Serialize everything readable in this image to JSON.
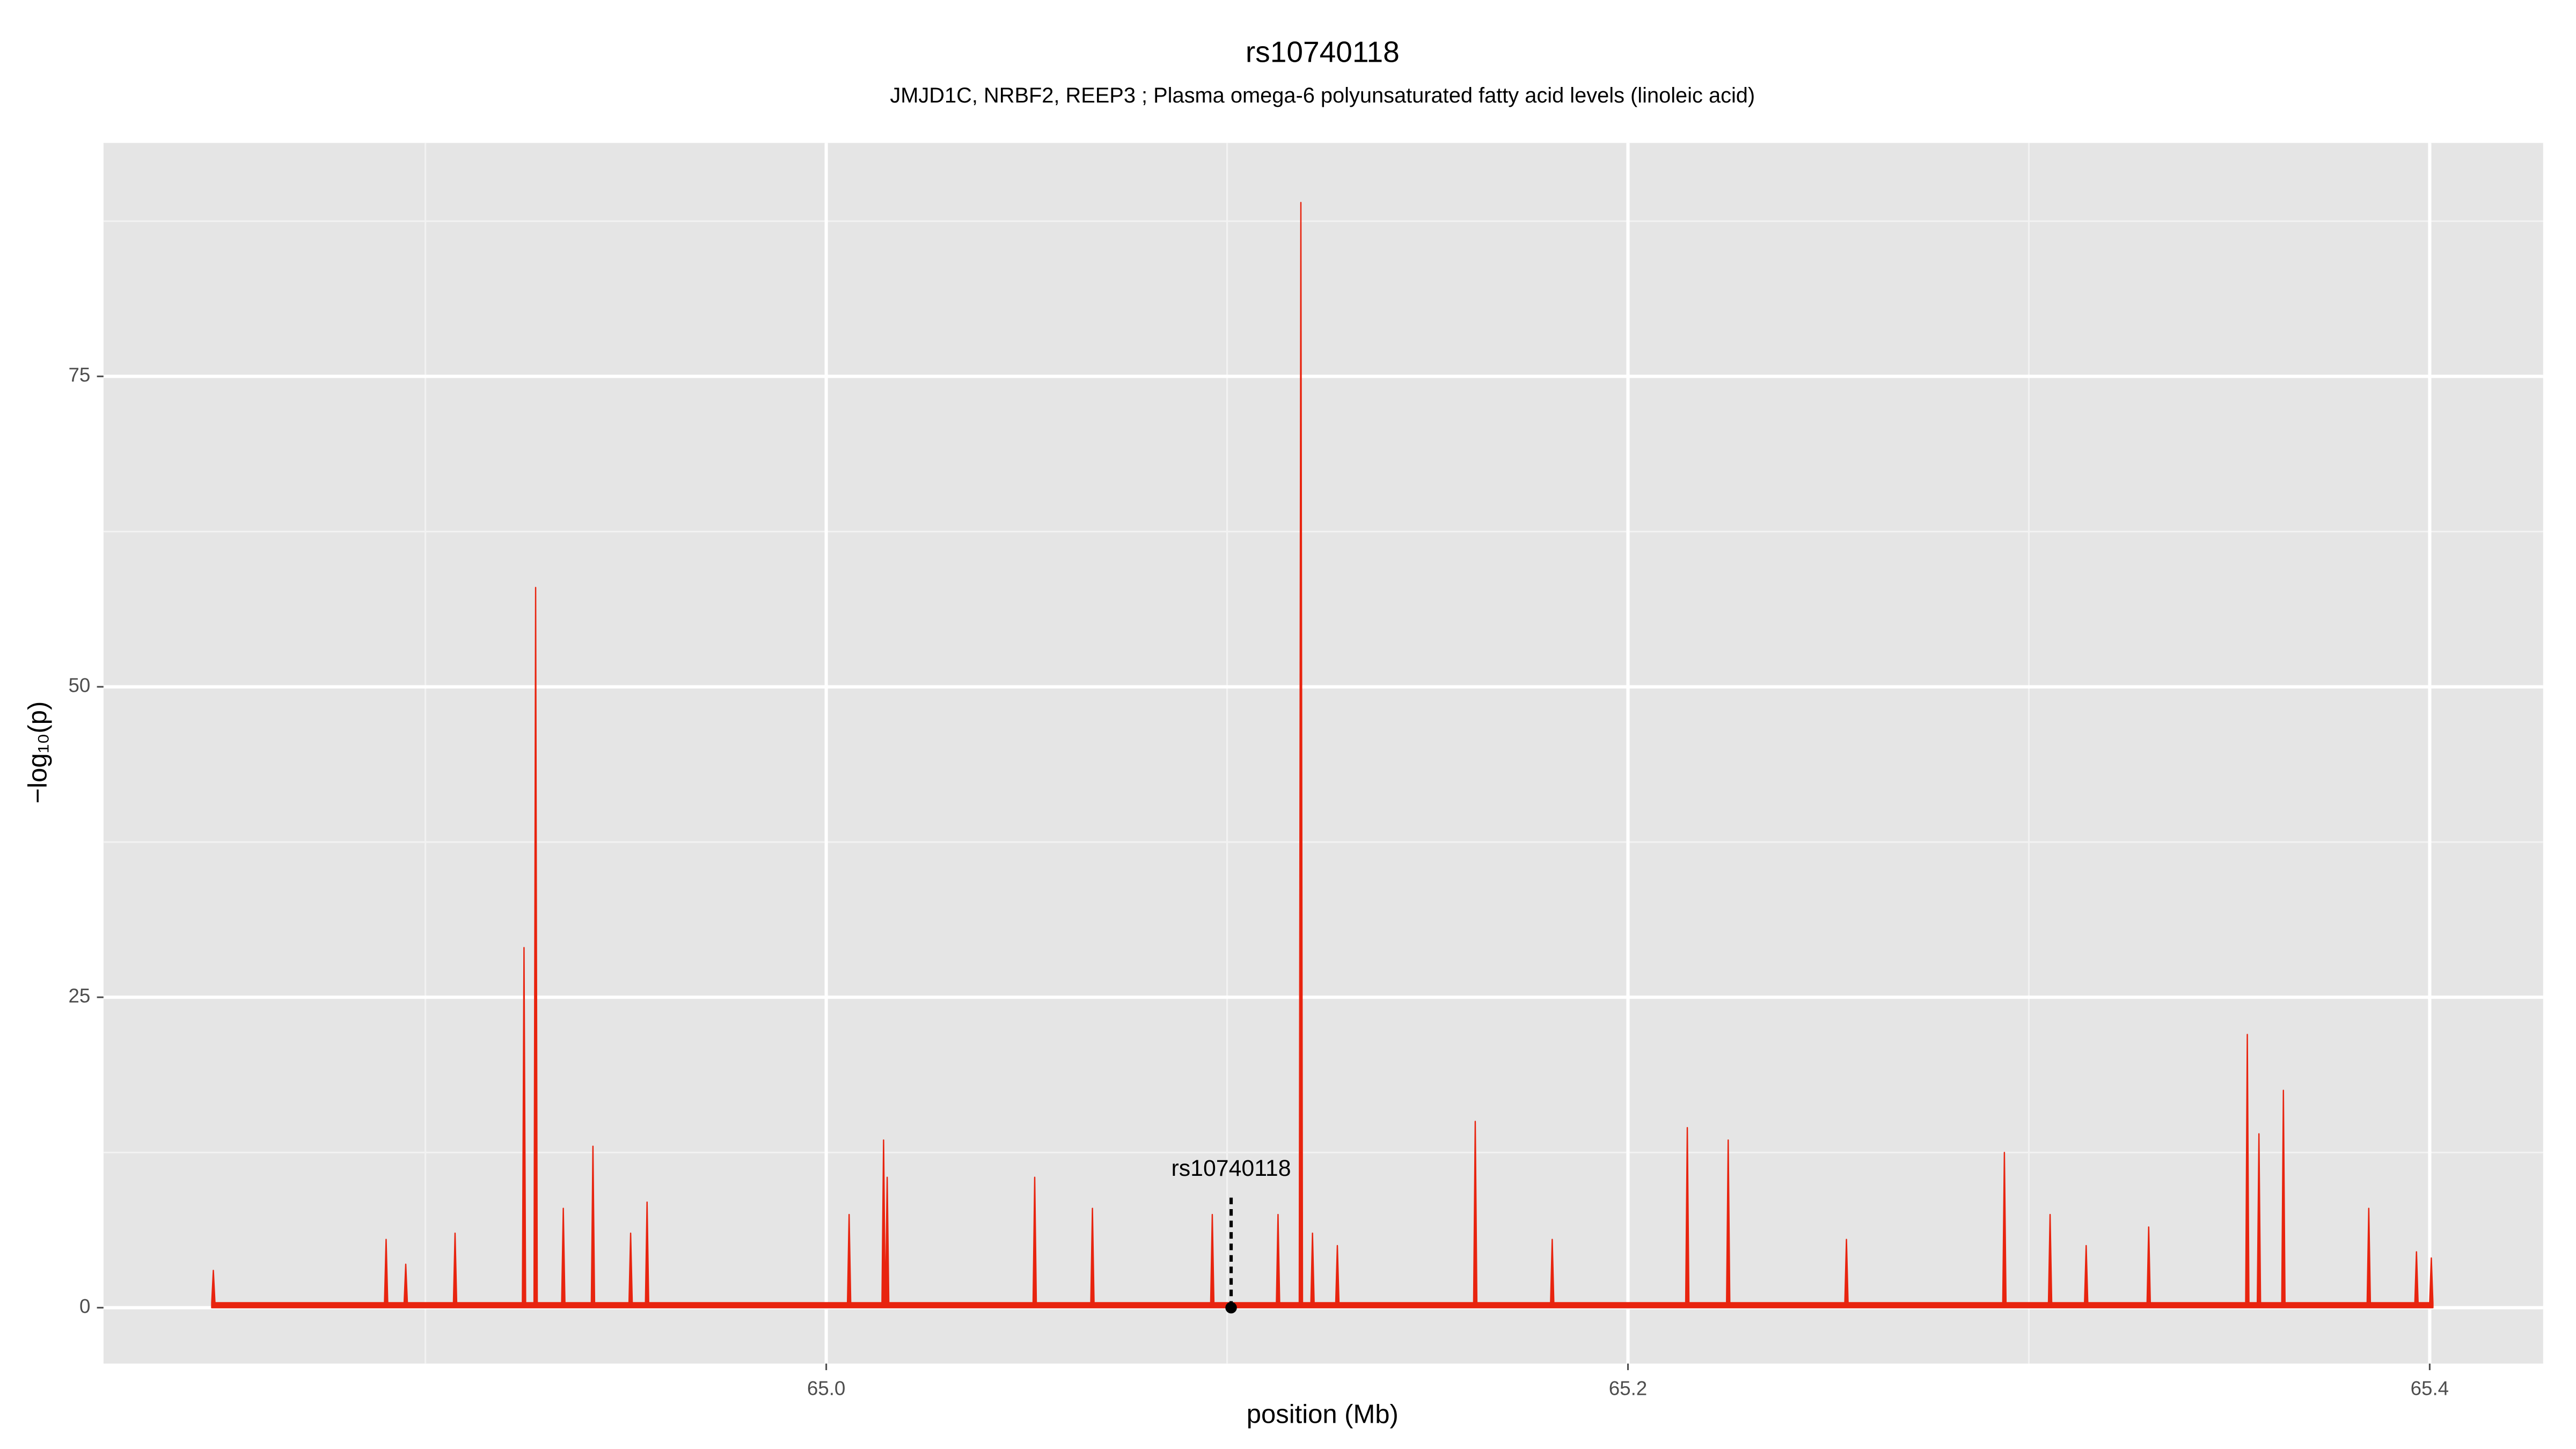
{
  "chart_data": {
    "type": "line",
    "title": "rs10740118",
    "subtitle": "JMJD1C, NRBF2, REEP3 ; Plasma omega-6 polyunsaturated fatty acid levels (linoleic acid)",
    "x_label": "position (Mb)",
    "y_label": "−log₁₀(p)",
    "xlim": [
      64.8197,
      65.4283
    ],
    "ylim": [
      -4.5,
      93.8
    ],
    "xticks": [
      {
        "value": 65,
        "label": "65.0"
      },
      65.2,
      65.4
    ],
    "yticks": [
      0,
      25,
      50,
      75
    ],
    "x_minor_ticks": [
      64.9,
      65.1,
      65.3
    ],
    "y_minor_ticks": [
      12.5,
      37.5,
      62.5,
      87.5
    ],
    "grid": true,
    "series": [
      {
        "color": "#e8240f",
        "x": [
          64.8467,
          64.8471,
          64.8475,
          64.8898,
          64.8902,
          64.8906,
          64.8947,
          64.8951,
          64.8955,
          64.907,
          64.9074,
          64.9078,
          64.9242,
          64.9246,
          64.925,
          64.9271,
          64.9275,
          64.9279,
          64.934,
          64.9344,
          64.9348,
          64.9414,
          64.9418,
          64.9422,
          64.9508,
          64.9512,
          64.9516,
          64.9549,
          64.9553,
          64.9557,
          65.0053,
          65.0057,
          65.0061,
          65.0139,
          65.0143,
          65.0147,
          65.0148,
          65.0152,
          65.0156,
          65.0516,
          65.052,
          65.0524,
          65.066,
          65.0664,
          65.0668,
          65.0959,
          65.0963,
          65.0967,
          65.1123,
          65.1127,
          65.1131,
          65.118,
          65.1184,
          65.1188,
          65.1209,
          65.1213,
          65.1217,
          65.1271,
          65.1275,
          65.1279,
          65.1615,
          65.1619,
          65.1623,
          65.1807,
          65.1811,
          65.1815,
          65.2144,
          65.2148,
          65.2152,
          65.2246,
          65.225,
          65.2254,
          65.2541,
          65.2545,
          65.2549,
          65.2935,
          65.2939,
          65.2943,
          65.3049,
          65.3053,
          65.3057,
          65.3139,
          65.3143,
          65.3147,
          65.3295,
          65.3299,
          65.3303,
          65.3541,
          65.3545,
          65.3549,
          65.357,
          65.3574,
          65.3578,
          65.3631,
          65.3635,
          65.3639,
          65.3844,
          65.3848,
          65.3852,
          65.3963,
          65.3967,
          65.3971,
          65.4,
          65.4004,
          65.4008
        ],
        "values": [
          0.4,
          3,
          0.4,
          0.4,
          5.5,
          0.4,
          0.4,
          3.5,
          0.4,
          0.4,
          6,
          0.4,
          0.4,
          29,
          0.4,
          0.4,
          58,
          0.4,
          0.4,
          8,
          0.4,
          0.4,
          13,
          0.4,
          0.4,
          6,
          0.4,
          0.4,
          8.5,
          0.4,
          0.4,
          7.5,
          0.4,
          0.4,
          13.5,
          0.4,
          0.4,
          10.5,
          0.4,
          0.4,
          10.5,
          0.4,
          0.4,
          8,
          0.4,
          0.4,
          7.5,
          0.4,
          0.4,
          7.5,
          0.4,
          0.4,
          89,
          0.4,
          0.4,
          6,
          0.4,
          0.4,
          5,
          0.4,
          0.4,
          15,
          0.4,
          0.4,
          5.5,
          0.4,
          0.4,
          14.5,
          0.4,
          0.4,
          13.5,
          0.4,
          0.4,
          5.5,
          0.4,
          0.4,
          12.5,
          0.4,
          0.4,
          7.5,
          0.4,
          0.4,
          5,
          0.4,
          0.4,
          6.5,
          0.4,
          0.4,
          22,
          0.4,
          0.4,
          14,
          0.4,
          0.4,
          17.5,
          0.4,
          0.4,
          8,
          0.4,
          0.4,
          4.5,
          0.4,
          0.4,
          4,
          0.4
        ]
      }
    ],
    "annotation": {
      "text": "rs10740118",
      "x": 65.101,
      "y": 0
    }
  }
}
